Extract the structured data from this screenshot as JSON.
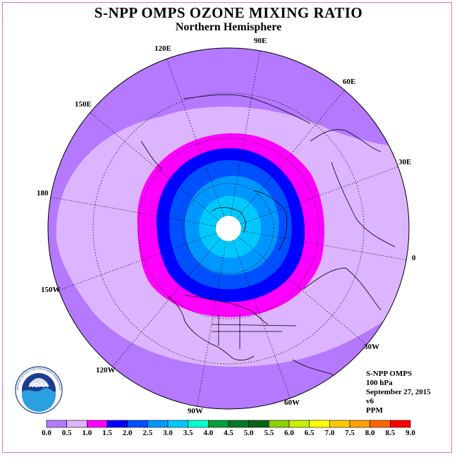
{
  "header": {
    "title": "S-NPP OMPS OZONE MIXING RATIO",
    "subtitle": "Northern Hemisphere"
  },
  "longitude_labels": [
    "90E",
    "60E",
    "30E",
    "0",
    "30W",
    "60W",
    "90W",
    "120W",
    "150W",
    "180",
    "150E",
    "120E"
  ],
  "info": {
    "instrument": "S-NPP OMPS",
    "level": "100 hPa",
    "date": "September 27, 2015",
    "version": "v6",
    "units": "PPM"
  },
  "logo": {
    "text": "NOAA",
    "ring_text": "NATIONAL OCEANIC AND ATMOSPHERIC ADMINISTRATION · U.S. DEPARTMENT OF COMMERCE"
  },
  "colorbar": {
    "ticks": [
      "0.0",
      "0.5",
      "1.0",
      "1.5",
      "2.0",
      "2.5",
      "3.0",
      "3.5",
      "4.0",
      "4.5",
      "5.0",
      "5.5",
      "6.0",
      "6.5",
      "7.0",
      "7.5",
      "8.0",
      "8.5",
      "9.0"
    ],
    "colors": [
      "#b479ff",
      "#dcb4ff",
      "#ff00ff",
      "#0000ff",
      "#0050ff",
      "#0096ff",
      "#00c8ff",
      "#00ffd2",
      "#00a03c",
      "#007828",
      "#006414",
      "#8cd200",
      "#c8f000",
      "#ffff00",
      "#ffc800",
      "#ffa000",
      "#ff6400",
      "#ff0000",
      "#a0522d"
    ]
  },
  "map_colors": {
    "outer": "#b479ff",
    "band_0_5": "#dcb4ff",
    "band_1_0": "#ff00ff",
    "band_1_5": "#0000ff",
    "band_2_0": "#0050ff",
    "band_2_5": "#0096ff",
    "band_3_0": "#00c8ff",
    "polar_hole": "#ffffff"
  }
}
